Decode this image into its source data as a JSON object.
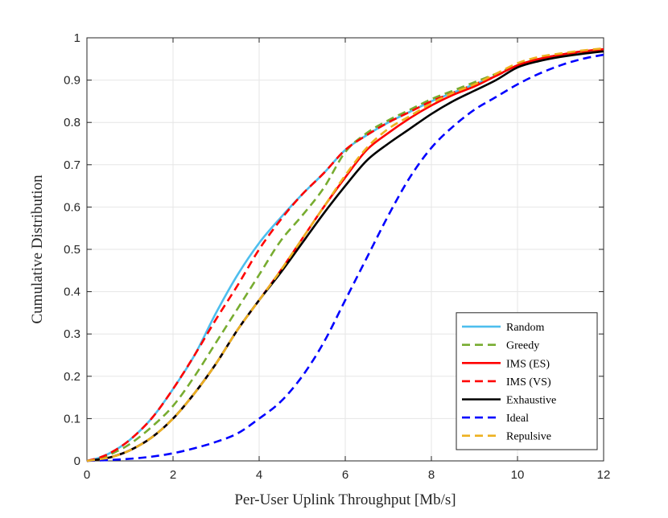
{
  "chart_data": {
    "type": "line",
    "title": "",
    "xlabel": "Per-User Uplink Throughput [Mb/s]",
    "ylabel": "Cumulative Distribution",
    "xlim": [
      0,
      12
    ],
    "ylim": [
      0,
      1
    ],
    "xticks": [
      0,
      2,
      4,
      6,
      8,
      10,
      12
    ],
    "yticks": [
      0,
      0.1,
      0.2,
      0.3,
      0.4,
      0.5,
      0.6,
      0.7,
      0.8,
      0.9,
      1
    ],
    "xtick_labels": [
      "0",
      "2",
      "4",
      "6",
      "8",
      "10",
      "12"
    ],
    "ytick_labels": [
      "0",
      "0.1",
      "0.2",
      "0.3",
      "0.4",
      "0.5",
      "0.6",
      "0.7",
      "0.8",
      "0.9",
      "1"
    ],
    "grid": true,
    "legend_position": "bottom-right",
    "series": [
      {
        "name": "Random",
        "color": "#4DBEEE",
        "dash": "solid",
        "x": [
          0,
          0.3,
          0.6,
          1.0,
          1.5,
          2.0,
          2.5,
          3.0,
          3.5,
          4.0,
          4.5,
          5.0,
          5.5,
          6.0,
          6.5,
          7.0,
          7.5,
          8.0,
          8.5,
          9.0,
          9.5,
          10.0,
          10.5,
          11.0,
          11.5,
          12.0
        ],
        "y": [
          0,
          0.008,
          0.022,
          0.05,
          0.1,
          0.17,
          0.25,
          0.35,
          0.44,
          0.515,
          0.575,
          0.63,
          0.68,
          0.735,
          0.77,
          0.8,
          0.825,
          0.85,
          0.87,
          0.89,
          0.91,
          0.935,
          0.95,
          0.96,
          0.965,
          0.97
        ]
      },
      {
        "name": "Greedy",
        "color": "#77AC30",
        "dash": "dashed",
        "x": [
          0,
          0.3,
          0.6,
          1.0,
          1.5,
          2.0,
          2.5,
          3.0,
          3.5,
          4.0,
          4.5,
          5.0,
          5.5,
          6.0,
          6.5,
          7.0,
          7.5,
          8.0,
          8.5,
          9.0,
          9.5,
          10.0,
          10.5,
          11.0,
          11.5,
          12.0
        ],
        "y": [
          0,
          0.006,
          0.018,
          0.04,
          0.08,
          0.13,
          0.2,
          0.28,
          0.36,
          0.44,
          0.52,
          0.58,
          0.645,
          0.73,
          0.775,
          0.805,
          0.83,
          0.855,
          0.875,
          0.895,
          0.915,
          0.935,
          0.95,
          0.96,
          0.965,
          0.97
        ]
      },
      {
        "name": "IMS (ES)",
        "color": "#FF0000",
        "dash": "solid",
        "x": [
          0,
          0.3,
          0.6,
          1.0,
          1.5,
          2.0,
          2.5,
          3.0,
          3.5,
          4.0,
          4.5,
          5.0,
          5.5,
          6.0,
          6.5,
          7.0,
          7.5,
          8.0,
          8.5,
          9.0,
          9.5,
          10.0,
          10.5,
          11.0,
          11.5,
          12.0
        ],
        "y": [
          0,
          0.004,
          0.01,
          0.025,
          0.055,
          0.1,
          0.16,
          0.23,
          0.31,
          0.38,
          0.45,
          0.525,
          0.6,
          0.67,
          0.735,
          0.775,
          0.81,
          0.84,
          0.865,
          0.885,
          0.91,
          0.935,
          0.95,
          0.96,
          0.968,
          0.973
        ]
      },
      {
        "name": "IMS (VS)",
        "color": "#FF0000",
        "dash": "dashed",
        "x": [
          0,
          0.3,
          0.6,
          1.0,
          1.5,
          2.0,
          2.5,
          3.0,
          3.5,
          4.0,
          4.5,
          5.0,
          5.5,
          6.0,
          6.5,
          7.0,
          7.5,
          8.0,
          8.5,
          9.0,
          9.5,
          10.0,
          10.5,
          11.0,
          11.5,
          12.0
        ],
        "y": [
          0,
          0.008,
          0.022,
          0.05,
          0.1,
          0.17,
          0.25,
          0.335,
          0.415,
          0.5,
          0.57,
          0.63,
          0.68,
          0.735,
          0.77,
          0.8,
          0.825,
          0.85,
          0.87,
          0.89,
          0.91,
          0.935,
          0.95,
          0.96,
          0.965,
          0.97
        ]
      },
      {
        "name": "Exhaustive",
        "color": "#000000",
        "dash": "solid",
        "x": [
          0,
          0.3,
          0.6,
          1.0,
          1.5,
          2.0,
          2.5,
          3.0,
          3.5,
          4.0,
          4.5,
          5.0,
          5.5,
          6.0,
          6.5,
          7.0,
          7.5,
          8.0,
          8.5,
          9.0,
          9.5,
          10.0,
          10.5,
          11.0,
          11.5,
          12.0
        ],
        "y": [
          0,
          0.004,
          0.01,
          0.025,
          0.055,
          0.1,
          0.16,
          0.23,
          0.31,
          0.38,
          0.445,
          0.515,
          0.585,
          0.65,
          0.71,
          0.75,
          0.785,
          0.82,
          0.85,
          0.875,
          0.9,
          0.93,
          0.945,
          0.955,
          0.962,
          0.968
        ]
      },
      {
        "name": "Ideal",
        "color": "#0000FF",
        "dash": "dashed",
        "x": [
          0,
          0.5,
          1.0,
          1.5,
          2.0,
          2.5,
          3.0,
          3.5,
          4.0,
          4.5,
          5.0,
          5.5,
          6.0,
          6.5,
          7.0,
          7.5,
          8.0,
          8.5,
          9.0,
          9.5,
          10.0,
          10.5,
          11.0,
          11.5,
          12.0
        ],
        "y": [
          0,
          0.002,
          0.005,
          0.01,
          0.018,
          0.03,
          0.045,
          0.065,
          0.1,
          0.14,
          0.2,
          0.28,
          0.38,
          0.48,
          0.58,
          0.67,
          0.74,
          0.79,
          0.83,
          0.86,
          0.89,
          0.915,
          0.935,
          0.95,
          0.96
        ]
      },
      {
        "name": "Repulsive",
        "color": "#EDB120",
        "dash": "dashed",
        "x": [
          0,
          0.3,
          0.6,
          1.0,
          1.5,
          2.0,
          2.5,
          3.0,
          3.5,
          4.0,
          4.5,
          5.0,
          5.5,
          6.0,
          6.5,
          7.0,
          7.5,
          8.0,
          8.5,
          9.0,
          9.5,
          10.0,
          10.5,
          11.0,
          11.5,
          12.0
        ],
        "y": [
          0,
          0.004,
          0.01,
          0.025,
          0.055,
          0.1,
          0.16,
          0.23,
          0.31,
          0.38,
          0.45,
          0.525,
          0.6,
          0.675,
          0.74,
          0.785,
          0.815,
          0.845,
          0.87,
          0.89,
          0.915,
          0.94,
          0.955,
          0.963,
          0.97,
          0.975
        ]
      }
    ]
  }
}
